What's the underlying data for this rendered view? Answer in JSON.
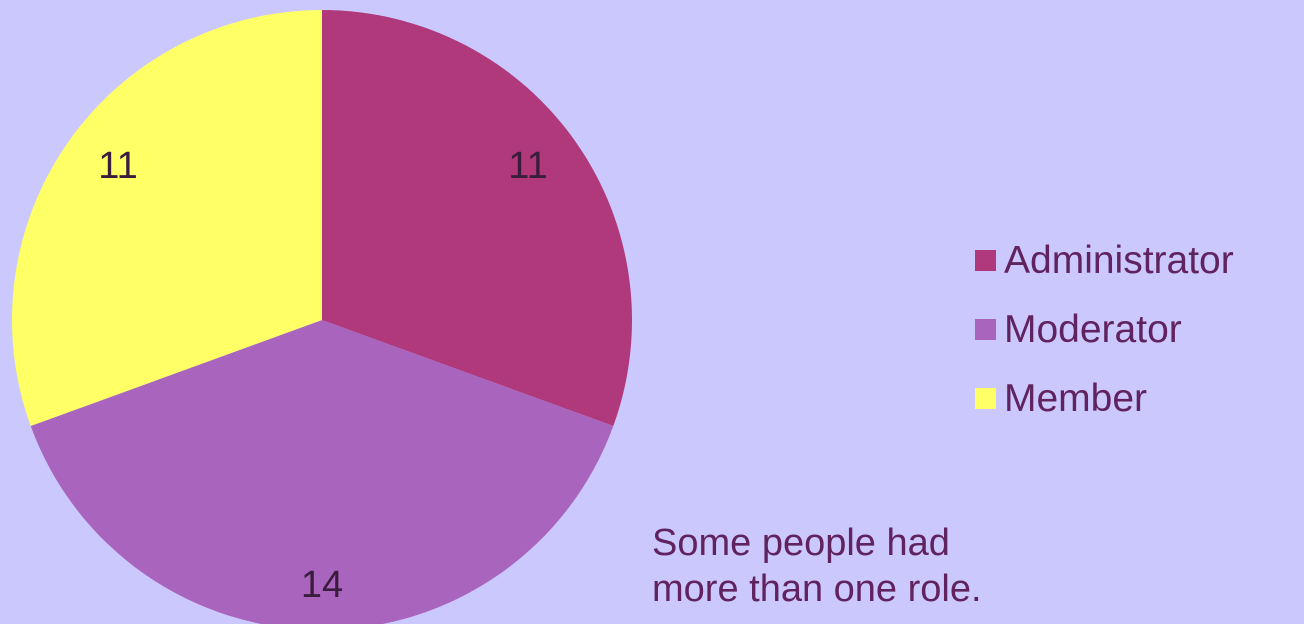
{
  "chart_data": {
    "type": "pie",
    "categories": [
      "Administrator",
      "Moderator",
      "Member"
    ],
    "values": [
      11,
      14,
      11
    ],
    "labels": [
      "11",
      "14",
      "11"
    ],
    "colors": [
      "#b0397c",
      "#a965bd",
      "#ffff66"
    ],
    "start_angle_deg": 0,
    "direction": "clockwise",
    "legend_position": "right"
  },
  "legend": {
    "items": [
      {
        "label": "Administrator",
        "color": "#b0397c"
      },
      {
        "label": "Moderator",
        "color": "#a965bd"
      },
      {
        "label": "Member",
        "color": "#ffff66"
      }
    ]
  },
  "note": {
    "line1": "Some people had",
    "line2": "more than one role."
  }
}
